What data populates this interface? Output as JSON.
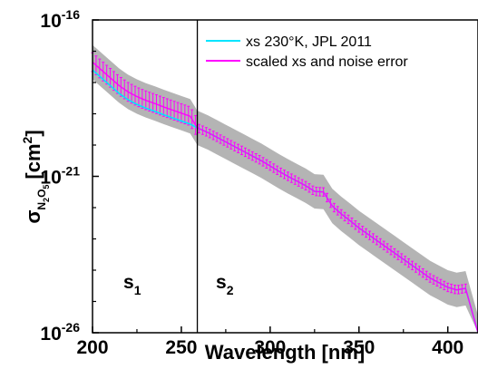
{
  "chart_data": {
    "type": "line",
    "xlabel": "Wavelength [nm]",
    "ylabel": {
      "symbol": "σ",
      "sub1": "N",
      "sub2": "2",
      "sub3": "O",
      "sub4": "5",
      "unit": "[cm",
      "unit_sup": "2",
      "unit_close": "]"
    },
    "xlim": [
      200,
      417
    ],
    "ylim_exponent": [
      -26,
      -16
    ],
    "y_scale": "log",
    "x_ticks": [
      "200",
      "250",
      "300",
      "350",
      "400"
    ],
    "x_tick_values": [
      200,
      250,
      300,
      350,
      400
    ],
    "y_ticks": [
      {
        "base": "10",
        "exp": "-16",
        "value_exp": -16
      },
      {
        "base": "10",
        "exp": "-21",
        "value_exp": -21
      },
      {
        "base": "10",
        "exp": "-26",
        "value_exp": -26
      }
    ],
    "legend": [
      {
        "label": "xs 230°K, JPL 2011",
        "color": "#00e5ff"
      },
      {
        "label": "scaled xs and noise error",
        "color": "#ff00ff"
      }
    ],
    "legend_placement": "top-right",
    "divider_x": 259,
    "regions": [
      {
        "label": "s",
        "sub": "1"
      },
      {
        "label": "s",
        "sub": "2"
      }
    ],
    "error_band_color": "#b4b4b4",
    "series": [
      {
        "name": "xs 230°K, JPL 2011",
        "color": "#00e5ff",
        "x": [
          200,
          205,
          210,
          215,
          220,
          225,
          230,
          235,
          240,
          245,
          250,
          255,
          259,
          265,
          270,
          275,
          280,
          285,
          290,
          295,
          300,
          305,
          310,
          315,
          320,
          325,
          330,
          335,
          340,
          345,
          350,
          355,
          360,
          365,
          370,
          375,
          380,
          385,
          390,
          395,
          400,
          405,
          410,
          417
        ],
        "log10_y": [
          -17.6,
          -17.85,
          -18.1,
          -18.35,
          -18.55,
          -18.7,
          -18.82,
          -18.92,
          -19.03,
          -19.13,
          -19.23,
          -19.33,
          -19.45,
          -19.6,
          -19.75,
          -19.9,
          -20.05,
          -20.2,
          -20.35,
          -20.5,
          -20.67,
          -20.84,
          -21.0,
          -21.15,
          -21.3,
          -21.48,
          -21.5,
          -21.95,
          -22.2,
          -22.42,
          -22.65,
          -22.85,
          -23.05,
          -23.25,
          -23.45,
          -23.65,
          -23.85,
          -24.05,
          -24.25,
          -24.4,
          -24.55,
          -24.63,
          -24.58,
          -26.0
        ]
      },
      {
        "name": "scaled xs and noise error",
        "color": "#ff00ff",
        "x": [
          200,
          205,
          210,
          215,
          220,
          225,
          230,
          235,
          240,
          245,
          250,
          255,
          259,
          265,
          270,
          275,
          280,
          285,
          290,
          295,
          300,
          305,
          310,
          315,
          320,
          325,
          330,
          335,
          340,
          345,
          350,
          355,
          360,
          365,
          370,
          375,
          380,
          385,
          390,
          395,
          400,
          405,
          410,
          417
        ],
        "log10_y": [
          -17.35,
          -17.6,
          -17.85,
          -18.1,
          -18.3,
          -18.45,
          -18.57,
          -18.67,
          -18.78,
          -18.88,
          -18.98,
          -19.08,
          -19.45,
          -19.6,
          -19.75,
          -19.9,
          -20.05,
          -20.2,
          -20.35,
          -20.5,
          -20.67,
          -20.84,
          -21.0,
          -21.15,
          -21.3,
          -21.48,
          -21.5,
          -21.95,
          -22.2,
          -22.42,
          -22.65,
          -22.85,
          -23.05,
          -23.25,
          -23.45,
          -23.65,
          -23.85,
          -24.05,
          -24.25,
          -24.4,
          -24.55,
          -24.63,
          -24.58,
          -26.0
        ]
      }
    ],
    "error_bar_log10_halfwidth": 0.3,
    "gray_band_log10_halfwidth": 0.55
  }
}
